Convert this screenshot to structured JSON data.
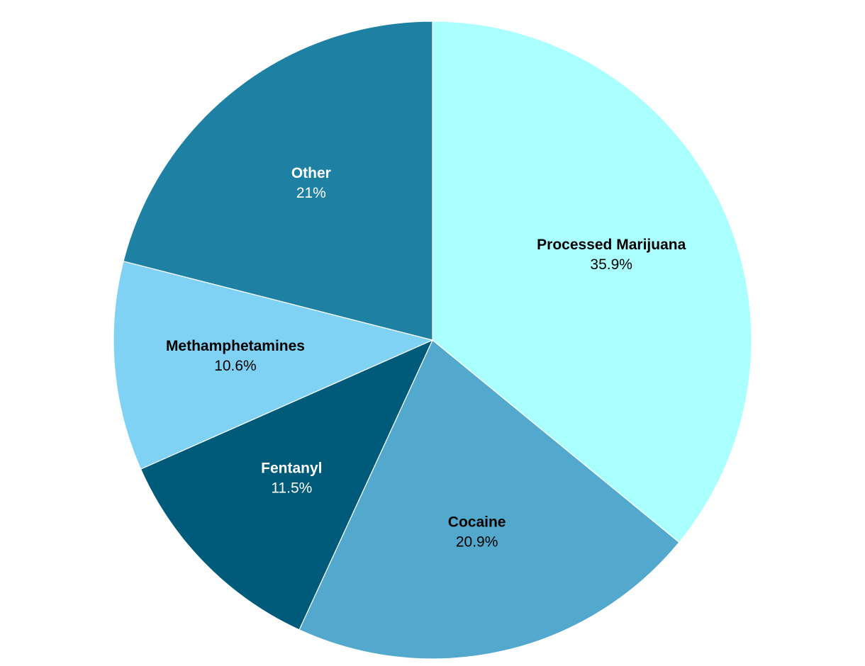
{
  "chart_data": {
    "type": "pie",
    "categories": [
      "Processed Marijuana",
      "Cocaine",
      "Fentanyl",
      "Methamphetamines",
      "Other"
    ],
    "values": [
      35.9,
      20.9,
      11.5,
      10.6,
      21
    ],
    "value_labels": [
      "35.9%",
      "20.9%",
      "11.5%",
      "10.6%",
      "21%"
    ],
    "colors": [
      "#aaffff",
      "#53a9cd",
      "#005a7a",
      "#80d2f5",
      "#1e80a2"
    ]
  }
}
